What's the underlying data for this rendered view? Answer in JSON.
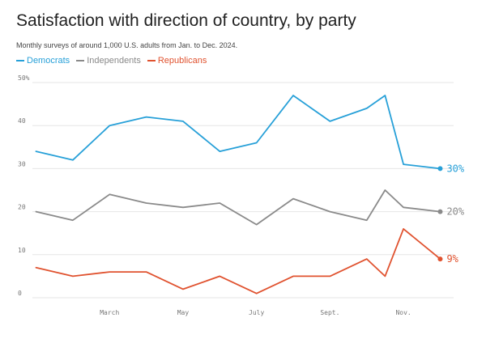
{
  "title": "Satisfaction with direction of country, by party",
  "subtitle": "Monthly surveys of around 1,000 U.S. adults from Jan. to Dec. 2024.",
  "colors": {
    "Democrats": "#27a0d8",
    "Independents": "#8a8a8a",
    "Republicans": "#e0522f",
    "grid": "#e6e6e6",
    "axis_text": "#777777"
  },
  "chart_data": {
    "type": "line",
    "title": "Satisfaction with direction of country, by party",
    "subtitle": "Monthly surveys of around 1,000 U.S. adults from Jan. to Dec. 2024.",
    "x": [
      0,
      1,
      2,
      3,
      4,
      5,
      6,
      7,
      8,
      9,
      9.5,
      10,
      11
    ],
    "x_tick_positions": [
      2,
      4,
      6,
      8,
      10
    ],
    "x_tick_labels": [
      "March",
      "May",
      "July",
      "Sept.",
      "Nov."
    ],
    "xlim": [
      -0.1,
      11.1
    ],
    "ylim": [
      0,
      50
    ],
    "y_ticks": [
      0,
      10,
      20,
      30,
      40,
      50
    ],
    "y_tick_labels": [
      "0",
      "10",
      "20",
      "30",
      "40",
      "50%"
    ],
    "grid": true,
    "legend": "top-left",
    "series": [
      {
        "name": "Democrats",
        "values": [
          34,
          32,
          40,
          42,
          41,
          34,
          36,
          47,
          41,
          44,
          47,
          31,
          30
        ],
        "end_label": "30%"
      },
      {
        "name": "Independents",
        "values": [
          20,
          18,
          24,
          22,
          21,
          22,
          17,
          23,
          20,
          18,
          25,
          21,
          20
        ],
        "end_label": "20%"
      },
      {
        "name": "Republicans",
        "values": [
          7,
          5,
          6,
          6,
          2,
          5,
          1,
          5,
          5,
          9,
          5,
          16,
          9
        ],
        "end_label": "9%"
      }
    ]
  }
}
